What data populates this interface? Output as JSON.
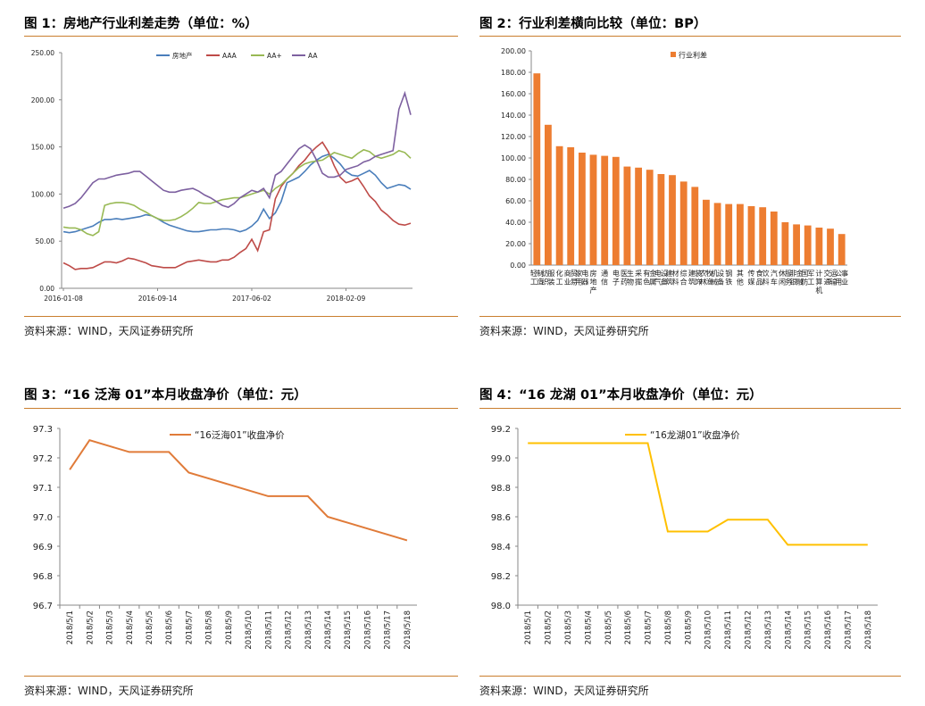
{
  "source_text": "资料来源：WIND，天风证券研究所",
  "chart_data": [
    {
      "type": "line",
      "title": "图 1：房地产行业利差走势（单位：%）",
      "xlabel": "",
      "ylabel": "",
      "ylim": [
        0,
        250
      ],
      "yticks": [
        "0.00",
        "50.00",
        "100.00",
        "150.00",
        "200.00",
        "250.00"
      ],
      "xticks": [
        "2016-01-08",
        "2016-09-14",
        "2017-06-02",
        "2018-02-09"
      ],
      "legend_position": "top",
      "series": [
        {
          "name": "房地产",
          "color": "#4a7ebb",
          "values": [
            60,
            59,
            60,
            62,
            64,
            66,
            70,
            73,
            73,
            74,
            73,
            74,
            75,
            76,
            78,
            77,
            74,
            70,
            67,
            65,
            63,
            61,
            60,
            60,
            61,
            62,
            62,
            63,
            63,
            62,
            60,
            62,
            66,
            72,
            84,
            74,
            80,
            92,
            112,
            115,
            118,
            124,
            131,
            136,
            140,
            142,
            138,
            132,
            124,
            120,
            119,
            122,
            125,
            120,
            112,
            106,
            108,
            110,
            109,
            105
          ]
        },
        {
          "name": "AAA",
          "color": "#be4b48",
          "values": [
            27,
            24,
            20,
            21,
            21,
            22,
            25,
            28,
            28,
            27,
            29,
            32,
            31,
            29,
            27,
            24,
            23,
            22,
            22,
            22,
            25,
            28,
            29,
            30,
            29,
            28,
            28,
            30,
            30,
            33,
            38,
            42,
            52,
            40,
            60,
            62,
            95,
            108,
            116,
            122,
            130,
            136,
            144,
            150,
            155,
            145,
            130,
            118,
            112,
            114,
            117,
            108,
            98,
            92,
            83,
            78,
            72,
            68,
            67,
            69
          ]
        },
        {
          "name": "AA+",
          "color": "#98b954",
          "values": [
            65,
            64,
            64,
            62,
            58,
            56,
            60,
            88,
            90,
            91,
            91,
            90,
            88,
            84,
            81,
            77,
            74,
            72,
            72,
            73,
            76,
            80,
            85,
            91,
            90,
            90,
            92,
            94,
            95,
            96,
            96,
            98,
            100,
            102,
            104,
            100,
            106,
            110,
            116,
            122,
            128,
            132,
            134,
            135,
            136,
            140,
            144,
            142,
            140,
            138,
            143,
            147,
            145,
            140,
            138,
            140,
            142,
            146,
            144,
            138
          ]
        },
        {
          "name": "AA",
          "color": "#7d60a0",
          "values": [
            85,
            87,
            90,
            96,
            104,
            112,
            116,
            116,
            118,
            120,
            121,
            122,
            124,
            124,
            119,
            114,
            109,
            104,
            102,
            102,
            104,
            105,
            106,
            103,
            99,
            96,
            92,
            88,
            86,
            90,
            96,
            100,
            104,
            102,
            106,
            96,
            120,
            124,
            132,
            140,
            148,
            152,
            148,
            136,
            122,
            118,
            118,
            120,
            126,
            128,
            130,
            134,
            136,
            140,
            142,
            144,
            146,
            190,
            207,
            184
          ]
        }
      ]
    },
    {
      "type": "bar",
      "title": "图 2：行业利差横向比较（单位：BP）",
      "xlabel": "",
      "ylabel": "",
      "ylim": [
        0,
        200
      ],
      "yticks": [
        "0.00",
        "20.00",
        "40.00",
        "60.00",
        "80.00",
        "100.00",
        "120.00",
        "140.00",
        "160.00",
        "180.00",
        "200.00"
      ],
      "legend_position": "top-left",
      "series": [
        {
          "name": "行业利差",
          "color": "#ed7d31",
          "values": [
            179,
            131,
            111,
            110,
            105,
            103,
            102,
            101,
            92,
            91,
            89,
            85,
            84,
            78,
            73,
            61,
            58,
            57,
            57,
            55,
            54,
            50,
            40,
            38,
            37,
            35,
            34,
            29
          ]
        }
      ],
      "categories": [
        "轻工制造",
        "纺织服装",
        "化工",
        "商业贸易",
        "家用电器",
        "房地产",
        "通信",
        "电子",
        "医药生物",
        "采掘",
        "有色金属",
        "电气设备",
        "建筑材料",
        "综合",
        "建筑装饰",
        "农林牧渔",
        "机械设备",
        "钢铁",
        "其他",
        "传媒",
        "食品饮料",
        "汽车",
        "休闲服务",
        "非银金融",
        "国防军工",
        "计算机",
        "交通运输",
        "公用事业"
      ]
    },
    {
      "type": "line",
      "title": "图 3：“16 泛海 01”本月收盘净价（单位：元）",
      "xlabel": "",
      "ylabel": "",
      "ylim": [
        96.7,
        97.3
      ],
      "yticks": [
        "96.7",
        "96.8",
        "96.9",
        "97.0",
        "97.1",
        "97.2",
        "97.3"
      ],
      "categories": [
        "2018/5/1",
        "2018/5/2",
        "2018/5/3",
        "2018/5/4",
        "2018/5/5",
        "2018/5/6",
        "2018/5/7",
        "2018/5/8",
        "2018/5/9",
        "2018/5/10",
        "2018/5/11",
        "2018/5/12",
        "2018/5/13",
        "2018/5/14",
        "2018/5/15",
        "2018/5/16",
        "2018/5/17",
        "2018/5/18"
      ],
      "legend_position": "top",
      "series": [
        {
          "name": "“16泛海01”收盘净价",
          "color": "#e07b39",
          "values": [
            97.16,
            97.26,
            97.24,
            97.22,
            97.22,
            97.22,
            97.15,
            97.13,
            97.11,
            97.09,
            97.07,
            97.07,
            97.07,
            97.0,
            96.98,
            96.96,
            96.94,
            96.92
          ]
        }
      ]
    },
    {
      "type": "line",
      "title": "图 4：“16 龙湖 01”本月收盘净价（单位：元）",
      "xlabel": "",
      "ylabel": "",
      "ylim": [
        98.0,
        99.2
      ],
      "yticks": [
        "98.0",
        "98.2",
        "98.4",
        "98.6",
        "98.8",
        "99.0",
        "99.2"
      ],
      "categories": [
        "2018/5/1",
        "2018/5/2",
        "2018/5/3",
        "2018/5/4",
        "2018/5/5",
        "2018/5/6",
        "2018/5/7",
        "2018/5/8",
        "2018/5/9",
        "2018/5/10",
        "2018/5/11",
        "2018/5/12",
        "2018/5/13",
        "2018/5/14",
        "2018/5/15",
        "2018/5/16",
        "2018/5/17",
        "2018/5/18"
      ],
      "legend_position": "top",
      "series": [
        {
          "name": "“16龙湖01”收盘净价",
          "color": "#ffc000",
          "values": [
            99.1,
            99.1,
            99.1,
            99.1,
            99.1,
            99.1,
            99.1,
            98.5,
            98.5,
            98.5,
            98.58,
            98.58,
            98.58,
            98.41,
            98.41,
            98.41,
            98.41,
            98.41
          ]
        }
      ]
    }
  ]
}
